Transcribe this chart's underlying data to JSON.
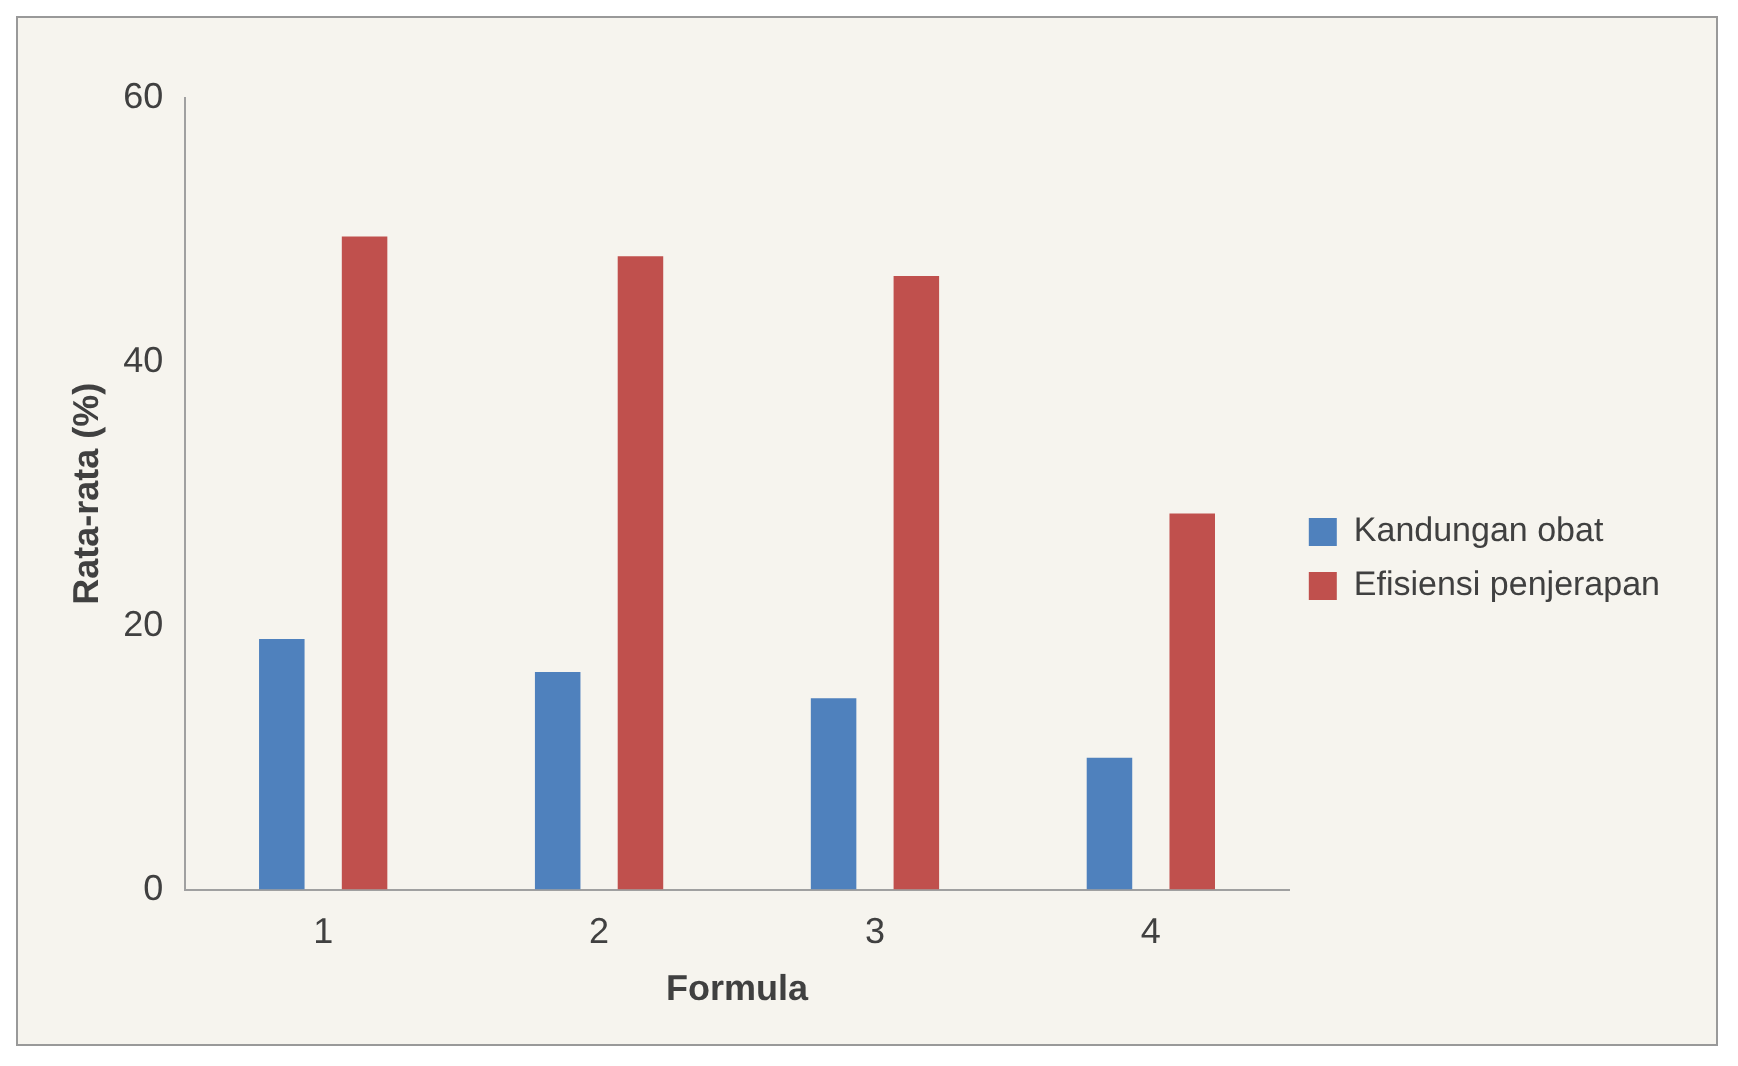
{
  "chart_data": {
    "type": "bar",
    "xlabel": "Formula",
    "ylabel": "Rata-rata (%)",
    "categories": [
      "1",
      "2",
      "3",
      "4"
    ],
    "series": [
      {
        "name": "Kandungan obat",
        "color": "#4f81bd",
        "values": [
          19,
          16.5,
          14.5,
          10
        ]
      },
      {
        "name": "Efisiensi penjerapan",
        "color": "#c0504d",
        "values": [
          49.5,
          48,
          46.5,
          28.5
        ]
      }
    ],
    "ylim": [
      0,
      60
    ],
    "yticks": [
      0,
      20,
      40,
      60
    ],
    "grid": false,
    "legend": "right"
  }
}
